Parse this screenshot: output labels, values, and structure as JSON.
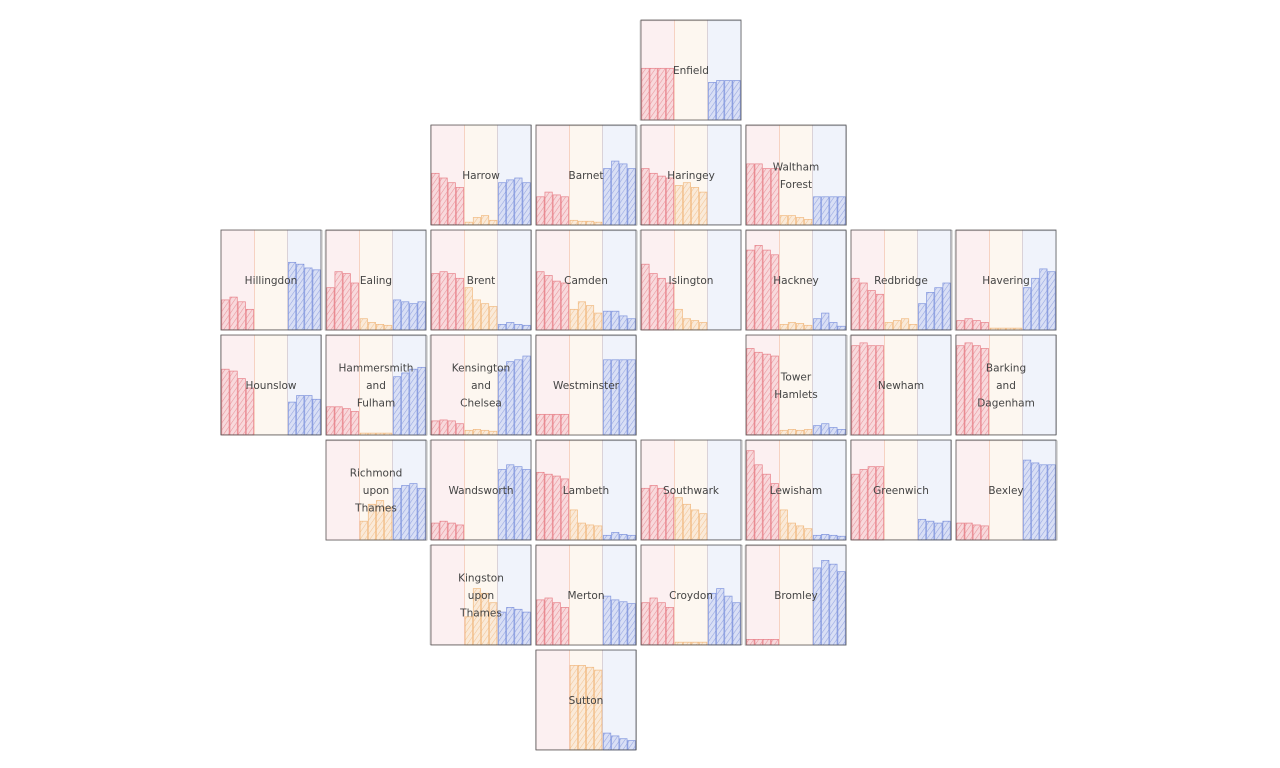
{
  "chart_data": {
    "type": "bar",
    "layout": "tile grid map of London boroughs, each tile a small multiple with three bar series",
    "style": "sketchy hatched fill",
    "colors": {
      "series_1": "#e46f78",
      "series_2": "#efb070",
      "series_3": "#6f86d8",
      "tile_border": "#555555",
      "label": "#444444"
    },
    "series": [
      {
        "color_key": "series_1"
      },
      {
        "color_key": "series_2"
      },
      {
        "color_key": "series_3"
      }
    ],
    "ylim": [
      0,
      1
    ],
    "tiles": [
      {
        "row": 0,
        "col": 4,
        "label": [
          "Enfield"
        ],
        "values": [
          [
            0.55,
            0.55,
            0.55,
            0.55
          ],
          [
            0,
            0,
            0,
            0
          ],
          [
            0.4,
            0.42,
            0.42,
            0.42
          ]
        ]
      },
      {
        "row": 1,
        "col": 2,
        "label": [
          "Harrow"
        ],
        "values": [
          [
            0.55,
            0.5,
            0.45,
            0.4
          ],
          [
            0.03,
            0.08,
            0.1,
            0.05
          ],
          [
            0.45,
            0.48,
            0.5,
            0.45
          ]
        ]
      },
      {
        "row": 1,
        "col": 3,
        "label": [
          "Barnet"
        ],
        "values": [
          [
            0.3,
            0.35,
            0.32,
            0.3
          ],
          [
            0.05,
            0.04,
            0.04,
            0.03
          ],
          [
            0.6,
            0.68,
            0.65,
            0.6
          ]
        ]
      },
      {
        "row": 1,
        "col": 4,
        "label": [
          "Haringey"
        ],
        "values": [
          [
            0.6,
            0.55,
            0.52,
            0.5
          ],
          [
            0.42,
            0.45,
            0.4,
            0.35
          ],
          [
            0,
            0,
            0,
            0
          ]
        ]
      },
      {
        "row": 1,
        "col": 5,
        "label": [
          "Waltham",
          "Forest"
        ],
        "values": [
          [
            0.65,
            0.65,
            0.6,
            0.6
          ],
          [
            0.1,
            0.1,
            0.08,
            0.06
          ],
          [
            0.3,
            0.3,
            0.3,
            0.3
          ]
        ]
      },
      {
        "row": 2,
        "col": 0,
        "label": [
          "Hillingdon"
        ],
        "values": [
          [
            0.32,
            0.35,
            0.3,
            0.22
          ],
          [
            0,
            0,
            0,
            0
          ],
          [
            0.72,
            0.7,
            0.66,
            0.64
          ]
        ]
      },
      {
        "row": 2,
        "col": 1,
        "label": [
          "Ealing"
        ],
        "values": [
          [
            0.45,
            0.62,
            0.6,
            0.5
          ],
          [
            0.12,
            0.08,
            0.06,
            0.05
          ],
          [
            0.32,
            0.3,
            0.28,
            0.3
          ]
        ]
      },
      {
        "row": 2,
        "col": 2,
        "label": [
          "Brent"
        ],
        "values": [
          [
            0.6,
            0.62,
            0.6,
            0.55
          ],
          [
            0.45,
            0.32,
            0.28,
            0.25
          ],
          [
            0.06,
            0.08,
            0.06,
            0.05
          ]
        ]
      },
      {
        "row": 2,
        "col": 3,
        "label": [
          "Camden"
        ],
        "values": [
          [
            0.62,
            0.58,
            0.52,
            0.5
          ],
          [
            0.22,
            0.3,
            0.26,
            0.18
          ],
          [
            0.2,
            0.2,
            0.15,
            0.12
          ]
        ]
      },
      {
        "row": 2,
        "col": 4,
        "label": [
          "Islington"
        ],
        "values": [
          [
            0.7,
            0.6,
            0.55,
            0.5
          ],
          [
            0.22,
            0.12,
            0.1,
            0.08
          ],
          [
            0,
            0,
            0,
            0
          ]
        ]
      },
      {
        "row": 2,
        "col": 5,
        "label": [
          "Hackney"
        ],
        "values": [
          [
            0.85,
            0.9,
            0.85,
            0.8
          ],
          [
            0.06,
            0.08,
            0.07,
            0.05
          ],
          [
            0.12,
            0.18,
            0.08,
            0.04
          ]
        ]
      },
      {
        "row": 2,
        "col": 6,
        "label": [
          "Redbridge"
        ],
        "values": [
          [
            0.55,
            0.5,
            0.42,
            0.38
          ],
          [
            0.08,
            0.1,
            0.12,
            0.06
          ],
          [
            0.28,
            0.4,
            0.45,
            0.5
          ]
        ]
      },
      {
        "row": 2,
        "col": 7,
        "label": [
          "Havering"
        ],
        "values": [
          [
            0.1,
            0.12,
            0.1,
            0.08
          ],
          [
            0.02,
            0.02,
            0.02,
            0.02
          ],
          [
            0.45,
            0.55,
            0.65,
            0.62
          ]
        ]
      },
      {
        "row": 3,
        "col": 0,
        "label": [
          "Hounslow"
        ],
        "values": [
          [
            0.7,
            0.68,
            0.6,
            0.5
          ],
          [
            0,
            0,
            0,
            0
          ],
          [
            0.35,
            0.42,
            0.42,
            0.38
          ]
        ]
      },
      {
        "row": 3,
        "col": 1,
        "label": [
          "Hammersmith",
          "and",
          "Fulham"
        ],
        "values": [
          [
            0.3,
            0.3,
            0.28,
            0.25
          ],
          [
            0.02,
            0.02,
            0.02,
            0.02
          ],
          [
            0.62,
            0.66,
            0.7,
            0.72
          ]
        ]
      },
      {
        "row": 3,
        "col": 2,
        "label": [
          "Kensington",
          "and",
          "Chelsea"
        ],
        "values": [
          [
            0.15,
            0.16,
            0.15,
            0.12
          ],
          [
            0.05,
            0.06,
            0.05,
            0.04
          ],
          [
            0.7,
            0.78,
            0.8,
            0.84
          ]
        ]
      },
      {
        "row": 3,
        "col": 3,
        "label": [
          "Westminster"
        ],
        "values": [
          [
            0.22,
            0.22,
            0.22,
            0.22
          ],
          [
            0,
            0,
            0,
            0
          ],
          [
            0.8,
            0.8,
            0.8,
            0.8
          ]
        ]
      },
      {
        "row": 3,
        "col": 5,
        "label": [
          "Tower",
          "Hamlets"
        ],
        "values": [
          [
            0.92,
            0.88,
            0.86,
            0.84
          ],
          [
            0.05,
            0.06,
            0.05,
            0.06
          ],
          [
            0.1,
            0.12,
            0.08,
            0.06
          ]
        ]
      },
      {
        "row": 3,
        "col": 6,
        "label": [
          "Newham"
        ],
        "values": [
          [
            0.95,
            0.98,
            0.95,
            0.95
          ],
          [
            0,
            0,
            0,
            0
          ],
          [
            0,
            0,
            0,
            0
          ]
        ]
      },
      {
        "row": 3,
        "col": 7,
        "label": [
          "Barking",
          "and",
          "Dagenham"
        ],
        "values": [
          [
            0.95,
            0.98,
            0.95,
            0.92
          ],
          [
            0,
            0,
            0,
            0
          ],
          [
            0,
            0,
            0,
            0
          ]
        ]
      },
      {
        "row": 4,
        "col": 1,
        "label": [
          "Richmond",
          "upon",
          "Thames"
        ],
        "values": [
          [
            0,
            0,
            0,
            0
          ],
          [
            0.2,
            0.38,
            0.42,
            0.35
          ],
          [
            0.55,
            0.58,
            0.6,
            0.55
          ]
        ]
      },
      {
        "row": 4,
        "col": 2,
        "label": [
          "Wandsworth"
        ],
        "values": [
          [
            0.18,
            0.2,
            0.18,
            0.16
          ],
          [
            0,
            0,
            0,
            0
          ],
          [
            0.75,
            0.8,
            0.78,
            0.75
          ]
        ]
      },
      {
        "row": 4,
        "col": 3,
        "label": [
          "Lambeth"
        ],
        "values": [
          [
            0.72,
            0.7,
            0.68,
            0.65
          ],
          [
            0.32,
            0.18,
            0.16,
            0.15
          ],
          [
            0.05,
            0.08,
            0.06,
            0.05
          ]
        ]
      },
      {
        "row": 4,
        "col": 4,
        "label": [
          "Southwark"
        ],
        "values": [
          [
            0.55,
            0.58,
            0.55,
            0.5
          ],
          [
            0.45,
            0.38,
            0.32,
            0.28
          ],
          [
            0,
            0,
            0,
            0
          ]
        ]
      },
      {
        "row": 4,
        "col": 5,
        "label": [
          "Lewisham"
        ],
        "values": [
          [
            0.95,
            0.8,
            0.7,
            0.6
          ],
          [
            0.32,
            0.18,
            0.15,
            0.12
          ],
          [
            0.05,
            0.06,
            0.05,
            0.04
          ]
        ]
      },
      {
        "row": 4,
        "col": 6,
        "label": [
          "Greenwich"
        ],
        "values": [
          [
            0.7,
            0.75,
            0.78,
            0.78
          ],
          [
            0,
            0,
            0,
            0
          ],
          [
            0.22,
            0.2,
            0.18,
            0.2
          ]
        ]
      },
      {
        "row": 4,
        "col": 7,
        "label": [
          "Bexley"
        ],
        "values": [
          [
            0.18,
            0.18,
            0.16,
            0.15
          ],
          [
            0,
            0,
            0,
            0
          ],
          [
            0.85,
            0.82,
            0.8,
            0.8
          ]
        ]
      },
      {
        "row": 5,
        "col": 2,
        "label": [
          "Kingston",
          "upon",
          "Thames"
        ],
        "values": [
          [
            0,
            0,
            0,
            0
          ],
          [
            0.3,
            0.6,
            0.55,
            0.45
          ],
          [
            0.35,
            0.4,
            0.38,
            0.35
          ]
        ]
      },
      {
        "row": 5,
        "col": 3,
        "label": [
          "Merton"
        ],
        "values": [
          [
            0.48,
            0.5,
            0.45,
            0.4
          ],
          [
            0,
            0,
            0,
            0
          ],
          [
            0.52,
            0.48,
            0.46,
            0.44
          ]
        ]
      },
      {
        "row": 5,
        "col": 4,
        "label": [
          "Croydon"
        ],
        "values": [
          [
            0.45,
            0.5,
            0.45,
            0.4
          ],
          [
            0.03,
            0.03,
            0.03,
            0.03
          ],
          [
            0.55,
            0.6,
            0.52,
            0.45
          ]
        ]
      },
      {
        "row": 5,
        "col": 5,
        "label": [
          "Bromley"
        ],
        "values": [
          [
            0.06,
            0.06,
            0.06,
            0.06
          ],
          [
            0,
            0,
            0,
            0
          ],
          [
            0.82,
            0.9,
            0.86,
            0.78
          ]
        ]
      },
      {
        "row": 6,
        "col": 3,
        "label": [
          "Sutton"
        ],
        "values": [
          [
            0,
            0,
            0,
            0
          ],
          [
            0.9,
            0.9,
            0.88,
            0.85
          ],
          [
            0.18,
            0.15,
            0.12,
            0.1
          ]
        ]
      }
    ]
  }
}
